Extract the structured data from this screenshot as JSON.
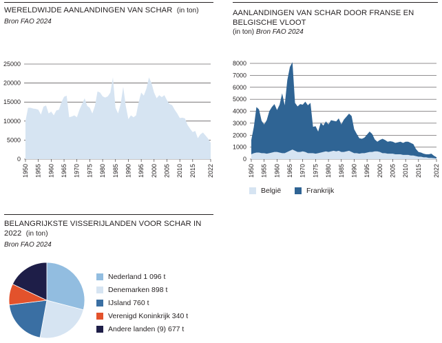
{
  "panel1": {
    "title": "WERELDWIJDE AANLANDINGEN VAN SCHAR",
    "unit": "(in ton)",
    "source": "Bron FAO 2024"
  },
  "panel2": {
    "title_line1": "AANLANDINGEN VAN SCHAR DOOR FRANSE EN",
    "title_line2": "BELGISCHE VLOOT",
    "unit": "(in ton)",
    "source": "Bron FAO 2024"
  },
  "panel3": {
    "title_line1": "BELANGRIJKSTE VISSERIJLANDEN VOOR SCHAR IN",
    "title_line2": "2022",
    "unit": "(in ton)",
    "source": "Bron FAO 2024"
  },
  "chart_data": [
    {
      "type": "area",
      "title": "WERELDWIJDE AANLANDINGEN VAN SCHAR",
      "ylim": [
        0,
        25000
      ],
      "yticks": [
        0,
        5000,
        10000,
        15000,
        20000,
        25000
      ],
      "xticks": [
        1950,
        1955,
        1960,
        1965,
        1970,
        1975,
        1980,
        1985,
        1990,
        1995,
        2000,
        2005,
        2010,
        2015,
        2022
      ],
      "grid": true,
      "colors": {
        "area": "#d6e4f2"
      },
      "x": [
        1950,
        1951,
        1952,
        1953,
        1954,
        1955,
        1956,
        1957,
        1958,
        1959,
        1960,
        1961,
        1962,
        1963,
        1964,
        1965,
        1966,
        1967,
        1968,
        1969,
        1970,
        1971,
        1972,
        1973,
        1974,
        1975,
        1976,
        1977,
        1978,
        1979,
        1980,
        1981,
        1982,
        1983,
        1984,
        1985,
        1986,
        1987,
        1988,
        1989,
        1990,
        1991,
        1992,
        1993,
        1994,
        1995,
        1996,
        1997,
        1998,
        1999,
        2000,
        2001,
        2002,
        2003,
        2004,
        2005,
        2006,
        2007,
        2008,
        2009,
        2010,
        2011,
        2012,
        2013,
        2014,
        2015,
        2016,
        2017,
        2018,
        2019,
        2020,
        2021,
        2022
      ],
      "series": [
        {
          "values": [
            10000,
            13500,
            13500,
            13300,
            13200,
            13000,
            11700,
            13800,
            14100,
            12000,
            12500,
            11500,
            12800,
            13000,
            15000,
            16400,
            16700,
            11000,
            11200,
            11500,
            11000,
            13000,
            14500,
            16000,
            14000,
            13500,
            12000,
            14000,
            17800,
            17500,
            16500,
            16200,
            16500,
            17500,
            21500,
            13500,
            12000,
            14500,
            19000,
            14000,
            10500,
            11500,
            11000,
            11500,
            15000,
            17500,
            16700,
            18500,
            21500,
            20000,
            17500,
            16000,
            16800,
            16300,
            16800,
            15500,
            14500,
            14200,
            13000,
            12000,
            10800,
            10900,
            10700,
            9000,
            8000,
            7100,
            7400,
            5500,
            6500,
            7000,
            6200,
            5400,
            4300
          ]
        }
      ]
    },
    {
      "type": "area",
      "title": "AANLANDINGEN VAN SCHAR DOOR FRANSE EN BELGISCHE VLOOT",
      "ylim": [
        0,
        8000
      ],
      "yticks": [
        0,
        1000,
        2000,
        3000,
        4000,
        5000,
        6000,
        7000,
        8000
      ],
      "xticks": [
        1950,
        1955,
        1960,
        1965,
        1970,
        1975,
        1980,
        1985,
        1990,
        1995,
        2000,
        2005,
        2010,
        2015,
        2022
      ],
      "grid": true,
      "legend": "bottom-left",
      "x": [
        1950,
        1951,
        1952,
        1953,
        1954,
        1955,
        1956,
        1957,
        1958,
        1959,
        1960,
        1961,
        1962,
        1963,
        1964,
        1965,
        1966,
        1967,
        1968,
        1969,
        1970,
        1971,
        1972,
        1973,
        1974,
        1975,
        1976,
        1977,
        1978,
        1979,
        1980,
        1981,
        1982,
        1983,
        1984,
        1985,
        1986,
        1987,
        1988,
        1989,
        1990,
        1991,
        1992,
        1993,
        1994,
        1995,
        1996,
        1997,
        1998,
        1999,
        2000,
        2001,
        2002,
        2003,
        2004,
        2005,
        2006,
        2007,
        2008,
        2009,
        2010,
        2011,
        2012,
        2013,
        2014,
        2015,
        2016,
        2017,
        2018,
        2019,
        2020,
        2021,
        2022
      ],
      "series": [
        {
          "name": "België",
          "color": "#d6e4f2",
          "values": [
            400,
            500,
            550,
            550,
            500,
            500,
            450,
            500,
            550,
            600,
            600,
            550,
            500,
            500,
            600,
            700,
            800,
            700,
            600,
            600,
            650,
            600,
            500,
            500,
            500,
            450,
            500,
            550,
            600,
            650,
            600,
            650,
            700,
            650,
            700,
            600,
            600,
            650,
            700,
            600,
            500,
            500,
            450,
            500,
            500,
            550,
            600,
            600,
            650,
            650,
            600,
            500,
            500,
            450,
            450,
            450,
            400,
            400,
            400,
            350,
            350,
            350,
            300,
            300,
            250,
            200,
            200,
            150,
            150,
            100,
            100,
            80,
            60
          ]
        },
        {
          "name": "Frankrijk",
          "color": "#2f6494",
          "values": [
            1200,
            2200,
            3800,
            3600,
            2700,
            2400,
            2800,
            3500,
            3800,
            4000,
            3500,
            4000,
            5000,
            4000,
            6000,
            7000,
            7300,
            4000,
            3800,
            4000,
            3900,
            4200,
            4000,
            4200,
            2200,
            2300,
            1800,
            2500,
            2200,
            2500,
            2300,
            2600,
            2500,
            2500,
            2700,
            2300,
            2700,
            2900,
            3100,
            3000,
            2000,
            1600,
            1300,
            1200,
            1300,
            1500,
            1700,
            1500,
            1000,
            800,
            1000,
            1200,
            1100,
            1000,
            1050,
            1000,
            950,
            1000,
            1050,
            1000,
            1100,
            1100,
            1050,
            950,
            600,
            400,
            350,
            300,
            250,
            300,
            350,
            200,
            100
          ]
        }
      ]
    },
    {
      "type": "pie",
      "title": "BELANGRIJKSTE VISSERIJLANDEN VOOR SCHAR IN 2022",
      "legend": "right",
      "categories": [
        "Nederland",
        "Denemarken",
        "IJsland",
        "Verenigd Koninkrijk",
        "Andere landen (9)"
      ],
      "values": [
        1096,
        898,
        760,
        340,
        677
      ],
      "labels": [
        "Nederland 1 096 t",
        "Denemarken 898 t",
        "IJsland  760 t",
        "Verenigd Koninkrijk 340 t",
        "Andere landen (9) 677 t"
      ],
      "colors": [
        "#92bde0",
        "#d6e4f2",
        "#3a6fa3",
        "#e3522c",
        "#1e1e48"
      ]
    }
  ]
}
